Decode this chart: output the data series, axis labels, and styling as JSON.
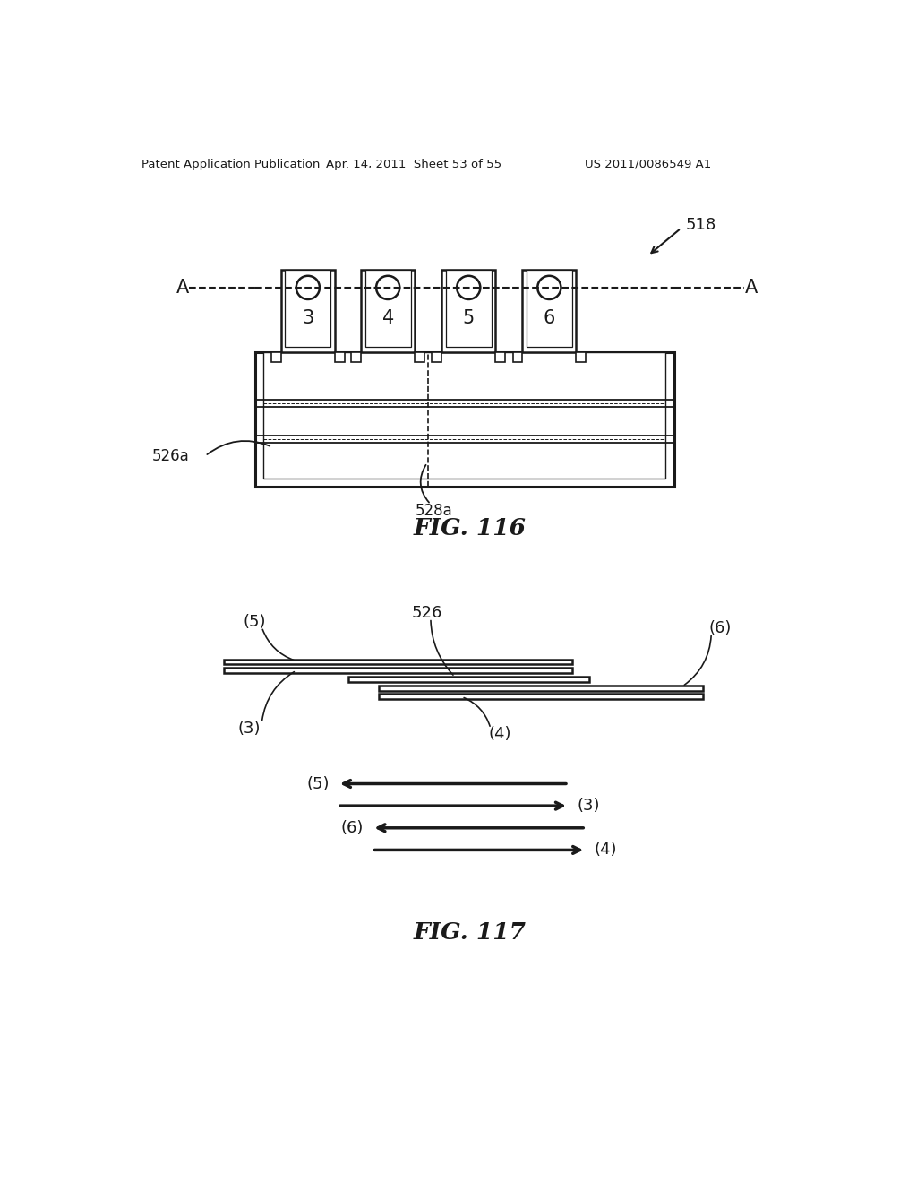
{
  "bg_color": "#ffffff",
  "line_color": "#1a1a1a",
  "header_left": "Patent Application Publication",
  "header_mid": "Apr. 14, 2011  Sheet 53 of 55",
  "header_right": "US 2011/0086549 A1",
  "fig116_label": "FIG. 116",
  "fig117_label": "FIG. 117",
  "label_518": "518",
  "label_526a": "526a",
  "label_528a": "528a",
  "label_526": "526",
  "label_A_left": "A",
  "label_A_right": "A",
  "contact_labels": [
    "3",
    "4",
    "5",
    "6"
  ]
}
